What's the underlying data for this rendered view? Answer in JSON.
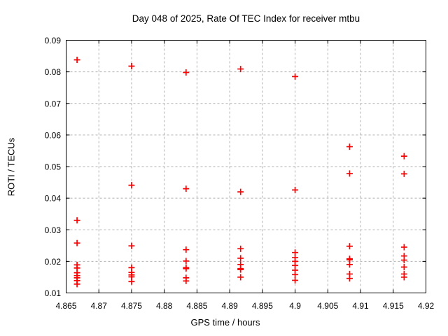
{
  "title": "Day 048 of 2025, Rate Of TEC Index for receiver mtbu",
  "chart_data": {
    "type": "scatter",
    "title": "Day 048 of 2025, Rate Of TEC Index for receiver mtbu",
    "xlabel": "GPS time / hours",
    "ylabel": "ROTI / TECUs",
    "xlim": [
      4.865,
      4.92
    ],
    "ylim": [
      0.01,
      0.09
    ],
    "xticks": [
      4.865,
      4.87,
      4.875,
      4.88,
      4.885,
      4.89,
      4.895,
      4.9,
      4.905,
      4.91,
      4.915,
      4.92
    ],
    "xtick_labels": [
      "4.865",
      "4.87",
      "4.875",
      "4.88",
      "4.885",
      "4.89",
      "4.895",
      "4.9",
      "4.905",
      "4.91",
      "4.915",
      "4.92"
    ],
    "yticks": [
      0.01,
      0.02,
      0.03,
      0.04,
      0.05,
      0.06,
      0.07,
      0.08,
      0.09
    ],
    "ytick_labels": [
      "0.01",
      "0.02",
      "0.03",
      "0.04",
      "0.05",
      "0.06",
      "0.07",
      "0.08",
      "0.09"
    ],
    "grid": true,
    "legend": "none",
    "marker": "plus",
    "marker_color": "#ff0000",
    "grid_color": "#b0b0b0",
    "border_color": "#000000",
    "series": [
      {
        "name": "ROTI",
        "clusters": [
          {
            "x": 4.866667,
            "y": [
              0.0838,
              0.033,
              0.0258,
              0.0189,
              0.0179,
              0.0164,
              0.0155,
              0.0148,
              0.0139,
              0.0128
            ]
          },
          {
            "x": 4.875,
            "y": [
              0.0818,
              0.0441,
              0.0249,
              0.018,
              0.0165,
              0.0157,
              0.0151,
              0.0136
            ]
          },
          {
            "x": 4.883333,
            "y": [
              0.0798,
              0.043,
              0.0237,
              0.0201,
              0.018,
              0.0177,
              0.0148,
              0.0138
            ]
          },
          {
            "x": 4.891667,
            "y": [
              0.0809,
              0.042,
              0.024,
              0.021,
              0.019,
              0.0177,
              0.0174,
              0.015
            ]
          },
          {
            "x": 4.9,
            "y": [
              0.0785,
              0.0426,
              0.0228,
              0.0212,
              0.02,
              0.0187,
              0.0172,
              0.0158,
              0.014
            ]
          },
          {
            "x": 4.908333,
            "y": [
              0.0563,
              0.0478,
              0.0248,
              0.0208,
              0.0205,
              0.019,
              0.016,
              0.0146
            ]
          },
          {
            "x": 4.916667,
            "y": [
              0.0533,
              0.0477,
              0.0245,
              0.0217,
              0.0204,
              0.0182,
              0.016,
              0.015
            ]
          }
        ]
      }
    ]
  }
}
